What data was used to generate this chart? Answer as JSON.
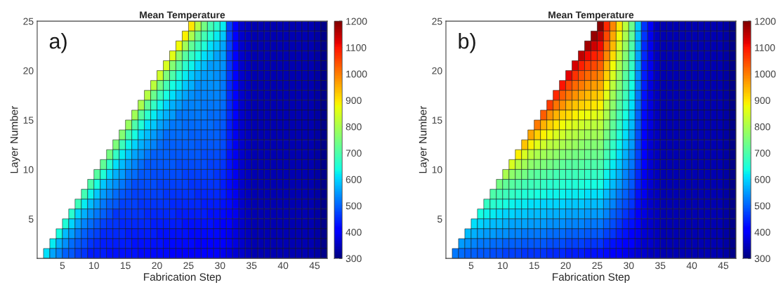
{
  "chart_data": [
    {
      "type": "heatmap",
      "title": "Mean Temperature",
      "xlabel": "Fabrication Step",
      "ylabel": "Layer Number",
      "annotations": [
        "a)"
      ],
      "xlim": [
        1,
        47
      ],
      "ylim": [
        1,
        25
      ],
      "xticks": [
        5,
        10,
        15,
        20,
        25,
        30,
        35,
        40,
        45
      ],
      "yticks": [
        5,
        10,
        15,
        20,
        25
      ],
      "clim": [
        300,
        1200
      ],
      "cticks": [
        300,
        400,
        500,
        600,
        700,
        800,
        900,
        1000,
        1100,
        1200
      ],
      "grid": false,
      "cells": [
        [
          null,
          null,
          null,
          null,
          null,
          null,
          null,
          null,
          null,
          null,
          null,
          null,
          null,
          null,
          null,
          null,
          null,
          null,
          null,
          null,
          null,
          null,
          null,
          null,
          900,
          810,
          740,
          690,
          660,
          620,
          470,
          400,
          360,
          350,
          340,
          340,
          340,
          340,
          340,
          340,
          340,
          340,
          340,
          340,
          330,
          310
        ],
        [
          null,
          null,
          null,
          null,
          null,
          null,
          null,
          null,
          null,
          null,
          null,
          null,
          null,
          null,
          null,
          null,
          null,
          null,
          null,
          null,
          null,
          null,
          null,
          890,
          800,
          730,
          690,
          650,
          620,
          590,
          470,
          400,
          360,
          350,
          340,
          340,
          340,
          340,
          340,
          340,
          340,
          340,
          340,
          340,
          330,
          310
        ],
        [
          null,
          null,
          null,
          null,
          null,
          null,
          null,
          null,
          null,
          null,
          null,
          null,
          null,
          null,
          null,
          null,
          null,
          null,
          null,
          null,
          null,
          null,
          880,
          790,
          720,
          680,
          650,
          610,
          590,
          560,
          470,
          400,
          360,
          350,
          340,
          340,
          340,
          340,
          340,
          340,
          340,
          340,
          340,
          340,
          330,
          310
        ],
        [
          null,
          null,
          null,
          null,
          null,
          null,
          null,
          null,
          null,
          null,
          null,
          null,
          null,
          null,
          null,
          null,
          null,
          null,
          null,
          null,
          null,
          860,
          770,
          710,
          670,
          640,
          610,
          590,
          560,
          550,
          460,
          400,
          360,
          350,
          340,
          340,
          340,
          340,
          340,
          340,
          340,
          340,
          340,
          340,
          330,
          310
        ],
        [
          null,
          null,
          null,
          null,
          null,
          null,
          null,
          null,
          null,
          null,
          null,
          null,
          null,
          null,
          null,
          null,
          null,
          null,
          null,
          null,
          850,
          760,
          710,
          660,
          630,
          600,
          580,
          550,
          550,
          540,
          460,
          400,
          360,
          350,
          340,
          340,
          340,
          340,
          340,
          340,
          340,
          340,
          340,
          340,
          330,
          310
        ],
        [
          null,
          null,
          null,
          null,
          null,
          null,
          null,
          null,
          null,
          null,
          null,
          null,
          null,
          null,
          null,
          null,
          null,
          null,
          null,
          840,
          750,
          700,
          650,
          620,
          590,
          570,
          550,
          550,
          540,
          530,
          460,
          400,
          360,
          350,
          340,
          340,
          340,
          340,
          340,
          340,
          340,
          340,
          340,
          340,
          330,
          310
        ],
        [
          null,
          null,
          null,
          null,
          null,
          null,
          null,
          null,
          null,
          null,
          null,
          null,
          null,
          null,
          null,
          null,
          null,
          null,
          820,
          740,
          690,
          640,
          620,
          590,
          570,
          540,
          540,
          540,
          540,
          520,
          450,
          400,
          360,
          350,
          340,
          340,
          340,
          340,
          340,
          340,
          340,
          340,
          340,
          340,
          330,
          310
        ],
        [
          null,
          null,
          null,
          null,
          null,
          null,
          null,
          null,
          null,
          null,
          null,
          null,
          null,
          null,
          null,
          null,
          null,
          810,
          730,
          680,
          640,
          610,
          580,
          560,
          540,
          530,
          530,
          530,
          530,
          520,
          450,
          400,
          360,
          350,
          340,
          340,
          340,
          340,
          340,
          340,
          340,
          340,
          340,
          340,
          330,
          310
        ],
        [
          null,
          null,
          null,
          null,
          null,
          null,
          null,
          null,
          null,
          null,
          null,
          null,
          null,
          null,
          null,
          null,
          800,
          720,
          670,
          630,
          600,
          570,
          550,
          530,
          530,
          530,
          520,
          520,
          520,
          510,
          450,
          400,
          360,
          350,
          340,
          340,
          340,
          340,
          340,
          340,
          340,
          340,
          340,
          340,
          330,
          310
        ],
        [
          null,
          null,
          null,
          null,
          null,
          null,
          null,
          null,
          null,
          null,
          null,
          null,
          null,
          null,
          null,
          790,
          710,
          660,
          620,
          590,
          570,
          550,
          520,
          520,
          520,
          520,
          520,
          510,
          510,
          500,
          450,
          400,
          360,
          350,
          340,
          340,
          340,
          340,
          340,
          340,
          340,
          340,
          340,
          340,
          330,
          310
        ],
        [
          null,
          null,
          null,
          null,
          null,
          null,
          null,
          null,
          null,
          null,
          null,
          null,
          null,
          null,
          780,
          700,
          650,
          610,
          590,
          560,
          540,
          520,
          520,
          510,
          510,
          510,
          510,
          510,
          500,
          490,
          440,
          390,
          360,
          350,
          340,
          340,
          340,
          340,
          340,
          340,
          340,
          340,
          340,
          340,
          330,
          310
        ],
        [
          null,
          null,
          null,
          null,
          null,
          null,
          null,
          null,
          null,
          null,
          null,
          null,
          null,
          760,
          690,
          640,
          600,
          580,
          550,
          530,
          510,
          510,
          510,
          510,
          500,
          500,
          500,
          500,
          500,
          480,
          440,
          390,
          360,
          350,
          340,
          340,
          340,
          340,
          340,
          340,
          340,
          340,
          340,
          340,
          330,
          310
        ],
        [
          null,
          null,
          null,
          null,
          null,
          null,
          null,
          null,
          null,
          null,
          null,
          null,
          750,
          680,
          630,
          600,
          570,
          550,
          530,
          510,
          500,
          500,
          500,
          500,
          500,
          490,
          490,
          490,
          490,
          480,
          440,
          390,
          360,
          350,
          340,
          340,
          340,
          340,
          340,
          340,
          340,
          340,
          340,
          340,
          330,
          310
        ],
        [
          null,
          null,
          null,
          null,
          null,
          null,
          null,
          null,
          null,
          null,
          null,
          740,
          670,
          620,
          590,
          560,
          540,
          520,
          500,
          500,
          500,
          490,
          490,
          490,
          490,
          490,
          480,
          480,
          480,
          470,
          430,
          390,
          360,
          350,
          340,
          340,
          340,
          340,
          340,
          340,
          340,
          340,
          340,
          340,
          330,
          310
        ],
        [
          null,
          null,
          null,
          null,
          null,
          null,
          null,
          null,
          null,
          null,
          720,
          660,
          610,
          580,
          550,
          530,
          510,
          490,
          490,
          490,
          490,
          490,
          480,
          480,
          480,
          480,
          480,
          470,
          470,
          460,
          430,
          390,
          360,
          350,
          340,
          340,
          340,
          340,
          340,
          340,
          340,
          340,
          340,
          340,
          330,
          310
        ],
        [
          null,
          null,
          null,
          null,
          null,
          null,
          null,
          null,
          null,
          710,
          650,
          600,
          570,
          550,
          520,
          510,
          490,
          490,
          480,
          480,
          480,
          480,
          480,
          470,
          470,
          470,
          470,
          470,
          460,
          450,
          430,
          390,
          360,
          350,
          340,
          340,
          340,
          340,
          340,
          340,
          340,
          340,
          340,
          340,
          330,
          310
        ],
        [
          null,
          null,
          null,
          null,
          null,
          null,
          null,
          null,
          700,
          640,
          590,
          560,
          540,
          520,
          500,
          480,
          480,
          480,
          480,
          470,
          470,
          470,
          470,
          470,
          460,
          460,
          460,
          460,
          460,
          440,
          420,
          390,
          360,
          350,
          340,
          340,
          340,
          340,
          340,
          340,
          340,
          340,
          340,
          340,
          330,
          310
        ],
        [
          null,
          null,
          null,
          null,
          null,
          null,
          null,
          690,
          630,
          590,
          550,
          530,
          510,
          490,
          480,
          470,
          470,
          470,
          470,
          470,
          460,
          460,
          460,
          460,
          460,
          450,
          450,
          450,
          450,
          440,
          420,
          390,
          360,
          350,
          340,
          340,
          340,
          340,
          340,
          340,
          340,
          340,
          340,
          340,
          330,
          310
        ],
        [
          null,
          null,
          null,
          null,
          null,
          null,
          680,
          620,
          580,
          550,
          520,
          500,
          490,
          470,
          470,
          470,
          460,
          460,
          460,
          460,
          460,
          450,
          450,
          450,
          450,
          450,
          440,
          440,
          440,
          430,
          420,
          390,
          360,
          350,
          340,
          340,
          340,
          340,
          340,
          340,
          340,
          340,
          340,
          340,
          330,
          310
        ],
        [
          null,
          null,
          null,
          null,
          null,
          660,
          600,
          570,
          540,
          520,
          500,
          480,
          460,
          460,
          460,
          460,
          460,
          450,
          450,
          450,
          450,
          450,
          440,
          440,
          440,
          440,
          440,
          430,
          430,
          420,
          410,
          390,
          360,
          350,
          340,
          340,
          340,
          340,
          340,
          340,
          340,
          340,
          340,
          340,
          330,
          310
        ],
        [
          null,
          null,
          null,
          null,
          650,
          600,
          560,
          530,
          510,
          490,
          470,
          460,
          460,
          450,
          450,
          450,
          450,
          450,
          440,
          440,
          440,
          440,
          440,
          430,
          430,
          430,
          430,
          430,
          420,
          410,
          400,
          380,
          360,
          350,
          340,
          340,
          340,
          340,
          340,
          340,
          340,
          340,
          340,
          340,
          330,
          310
        ],
        [
          null,
          null,
          null,
          640,
          580,
          550,
          520,
          500,
          480,
          470,
          450,
          450,
          450,
          450,
          440,
          440,
          440,
          440,
          440,
          430,
          430,
          430,
          430,
          430,
          420,
          420,
          420,
          420,
          420,
          400,
          390,
          380,
          360,
          350,
          340,
          340,
          340,
          340,
          340,
          340,
          340,
          340,
          340,
          340,
          330,
          310
        ],
        [
          null,
          null,
          620,
          570,
          540,
          510,
          490,
          480,
          460,
          450,
          440,
          440,
          440,
          440,
          440,
          430,
          430,
          430,
          430,
          430,
          420,
          420,
          420,
          420,
          420,
          410,
          410,
          410,
          410,
          400,
          390,
          380,
          360,
          350,
          340,
          340,
          340,
          340,
          340,
          340,
          340,
          340,
          340,
          340,
          330,
          310
        ],
        [
          null,
          610,
          560,
          530,
          500,
          490,
          470,
          460,
          440,
          440,
          440,
          430,
          430,
          430,
          430,
          430,
          420,
          420,
          420,
          420,
          420,
          410,
          410,
          410,
          410,
          410,
          400,
          400,
          400,
          390,
          380,
          370,
          360,
          350,
          340,
          340,
          340,
          340,
          340,
          340,
          340,
          340,
          340,
          340,
          330,
          310
        ]
      ]
    },
    {
      "type": "heatmap",
      "title": "Mean Temperature",
      "xlabel": "Fabrication Step",
      "ylabel": "Layer Number",
      "annotations": [
        "b)"
      ],
      "xlim": [
        1,
        47
      ],
      "ylim": [
        1,
        25
      ],
      "xticks": [
        5,
        10,
        15,
        20,
        25,
        30,
        35,
        40,
        45
      ],
      "yticks": [
        5,
        10,
        15,
        20,
        25
      ],
      "clim": [
        300,
        1200
      ],
      "cticks": [
        300,
        400,
        500,
        600,
        700,
        800,
        900,
        1000,
        1100,
        1200
      ],
      "grid": false,
      "cells": [
        [
          null,
          null,
          null,
          null,
          null,
          null,
          null,
          null,
          null,
          null,
          null,
          null,
          null,
          null,
          null,
          null,
          null,
          null,
          null,
          null,
          null,
          null,
          null,
          null,
          1190,
          1080,
          990,
          900,
          820,
          730,
          590,
          460,
          400,
          350,
          340,
          340,
          340,
          340,
          340,
          340,
          340,
          340,
          340,
          340,
          330,
          310
        ],
        [
          null,
          null,
          null,
          null,
          null,
          null,
          null,
          null,
          null,
          null,
          null,
          null,
          null,
          null,
          null,
          null,
          null,
          null,
          null,
          null,
          null,
          null,
          null,
          1180,
          1150,
          1050,
          960,
          880,
          800,
          720,
          580,
          460,
          390,
          350,
          340,
          340,
          340,
          340,
          340,
          340,
          340,
          340,
          340,
          340,
          330,
          310
        ],
        [
          null,
          null,
          null,
          null,
          null,
          null,
          null,
          null,
          null,
          null,
          null,
          null,
          null,
          null,
          null,
          null,
          null,
          null,
          null,
          null,
          null,
          null,
          1170,
          1140,
          1110,
          1020,
          940,
          850,
          780,
          700,
          570,
          450,
          390,
          350,
          340,
          340,
          340,
          340,
          340,
          340,
          340,
          340,
          340,
          340,
          330,
          310
        ],
        [
          null,
          null,
          null,
          null,
          null,
          null,
          null,
          null,
          null,
          null,
          null,
          null,
          null,
          null,
          null,
          null,
          null,
          null,
          null,
          null,
          null,
          1150,
          1110,
          1090,
          1070,
          990,
          910,
          830,
          760,
          680,
          560,
          450,
          390,
          350,
          340,
          340,
          340,
          340,
          340,
          340,
          340,
          340,
          340,
          340,
          330,
          310
        ],
        [
          null,
          null,
          null,
          null,
          null,
          null,
          null,
          null,
          null,
          null,
          null,
          null,
          null,
          null,
          null,
          null,
          null,
          null,
          null,
          null,
          1130,
          1090,
          1060,
          1050,
          1030,
          950,
          880,
          800,
          740,
          670,
          550,
          440,
          390,
          350,
          340,
          340,
          340,
          340,
          340,
          340,
          340,
          340,
          340,
          340,
          330,
          310
        ],
        [
          null,
          null,
          null,
          null,
          null,
          null,
          null,
          null,
          null,
          null,
          null,
          null,
          null,
          null,
          null,
          null,
          null,
          null,
          null,
          1120,
          1070,
          1040,
          1020,
          1010,
          990,
          920,
          850,
          780,
          710,
          650,
          540,
          440,
          390,
          350,
          340,
          340,
          340,
          340,
          340,
          340,
          340,
          340,
          340,
          340,
          330,
          310
        ],
        [
          null,
          null,
          null,
          null,
          null,
          null,
          null,
          null,
          null,
          null,
          null,
          null,
          null,
          null,
          null,
          null,
          null,
          null,
          1100,
          1050,
          1020,
          1000,
          980,
          970,
          960,
          890,
          820,
          760,
          700,
          640,
          530,
          440,
          380,
          350,
          340,
          340,
          340,
          340,
          340,
          340,
          340,
          340,
          340,
          340,
          330,
          310
        ],
        [
          null,
          null,
          null,
          null,
          null,
          null,
          null,
          null,
          null,
          null,
          null,
          null,
          null,
          null,
          null,
          null,
          null,
          1080,
          1030,
          1000,
          980,
          960,
          940,
          930,
          920,
          860,
          790,
          730,
          680,
          620,
          520,
          430,
          380,
          350,
          340,
          340,
          340,
          340,
          340,
          340,
          340,
          340,
          340,
          340,
          330,
          310
        ],
        [
          null,
          null,
          null,
          null,
          null,
          null,
          null,
          null,
          null,
          null,
          null,
          null,
          null,
          null,
          null,
          null,
          1060,
          1010,
          980,
          950,
          930,
          920,
          910,
          900,
          890,
          820,
          770,
          710,
          660,
          610,
          510,
          430,
          380,
          350,
          340,
          340,
          340,
          340,
          340,
          340,
          340,
          340,
          340,
          340,
          330,
          310
        ],
        [
          null,
          null,
          null,
          null,
          null,
          null,
          null,
          null,
          null,
          null,
          null,
          null,
          null,
          null,
          null,
          1030,
          980,
          950,
          920,
          910,
          890,
          880,
          870,
          860,
          850,
          800,
          740,
          690,
          640,
          590,
          500,
          420,
          380,
          350,
          340,
          340,
          340,
          340,
          340,
          340,
          340,
          340,
          340,
          340,
          330,
          310
        ],
        [
          null,
          null,
          null,
          null,
          null,
          null,
          null,
          null,
          null,
          null,
          null,
          null,
          null,
          null,
          1000,
          950,
          920,
          900,
          880,
          860,
          850,
          840,
          830,
          820,
          820,
          770,
          720,
          670,
          620,
          580,
          490,
          420,
          380,
          350,
          340,
          340,
          340,
          340,
          340,
          340,
          340,
          340,
          340,
          340,
          330,
          310
        ],
        [
          null,
          null,
          null,
          null,
          null,
          null,
          null,
          null,
          null,
          null,
          null,
          null,
          null,
          960,
          920,
          890,
          870,
          850,
          840,
          820,
          810,
          800,
          790,
          790,
          790,
          740,
          700,
          650,
          610,
          560,
          480,
          410,
          370,
          350,
          340,
          340,
          340,
          340,
          340,
          340,
          340,
          340,
          340,
          340,
          330,
          310
        ],
        [
          null,
          null,
          null,
          null,
          null,
          null,
          null,
          null,
          null,
          null,
          null,
          null,
          930,
          890,
          860,
          840,
          820,
          810,
          800,
          790,
          780,
          770,
          760,
          760,
          760,
          710,
          670,
          630,
          590,
          550,
          470,
          410,
          370,
          350,
          340,
          340,
          340,
          340,
          340,
          340,
          340,
          340,
          340,
          340,
          330,
          310
        ],
        [
          null,
          null,
          null,
          null,
          null,
          null,
          null,
          null,
          null,
          null,
          null,
          890,
          850,
          820,
          800,
          790,
          780,
          770,
          760,
          750,
          740,
          740,
          730,
          730,
          730,
          690,
          650,
          610,
          570,
          530,
          470,
          400,
          370,
          350,
          340,
          340,
          340,
          340,
          340,
          340,
          340,
          340,
          340,
          340,
          330,
          310
        ],
        [
          null,
          null,
          null,
          null,
          null,
          null,
          null,
          null,
          null,
          null,
          850,
          810,
          790,
          770,
          760,
          750,
          740,
          730,
          720,
          710,
          710,
          710,
          700,
          700,
          700,
          660,
          620,
          590,
          550,
          520,
          460,
          400,
          370,
          350,
          340,
          340,
          340,
          340,
          340,
          340,
          340,
          340,
          340,
          340,
          330,
          310
        ],
        [
          null,
          null,
          null,
          null,
          null,
          null,
          null,
          null,
          null,
          800,
          770,
          750,
          740,
          720,
          710,
          710,
          700,
          690,
          690,
          680,
          680,
          680,
          670,
          670,
          670,
          630,
          600,
          570,
          530,
          500,
          450,
          390,
          370,
          350,
          340,
          340,
          340,
          340,
          340,
          340,
          340,
          340,
          340,
          340,
          330,
          310
        ],
        [
          null,
          null,
          null,
          null,
          null,
          null,
          null,
          null,
          740,
          720,
          710,
          700,
          690,
          680,
          680,
          670,
          660,
          660,
          660,
          650,
          650,
          650,
          640,
          640,
          640,
          610,
          580,
          550,
          520,
          490,
          440,
          390,
          370,
          350,
          340,
          340,
          340,
          340,
          340,
          340,
          340,
          340,
          340,
          340,
          330,
          310
        ],
        [
          null,
          null,
          null,
          null,
          null,
          null,
          null,
          700,
          690,
          680,
          670,
          660,
          650,
          650,
          640,
          640,
          630,
          630,
          630,
          620,
          620,
          620,
          610,
          610,
          610,
          580,
          550,
          520,
          500,
          470,
          430,
          390,
          360,
          350,
          340,
          340,
          340,
          340,
          340,
          340,
          340,
          340,
          340,
          340,
          330,
          310
        ],
        [
          null,
          null,
          null,
          null,
          null,
          null,
          670,
          660,
          650,
          640,
          630,
          620,
          620,
          610,
          610,
          600,
          600,
          600,
          600,
          590,
          590,
          590,
          580,
          580,
          580,
          550,
          530,
          500,
          480,
          460,
          420,
          380,
          360,
          350,
          340,
          340,
          340,
          340,
          340,
          340,
          340,
          340,
          340,
          340,
          330,
          310
        ],
        [
          null,
          null,
          null,
          null,
          null,
          640,
          630,
          620,
          610,
          600,
          600,
          590,
          590,
          580,
          580,
          580,
          570,
          570,
          570,
          560,
          560,
          560,
          550,
          550,
          550,
          530,
          500,
          480,
          460,
          440,
          410,
          380,
          360,
          350,
          340,
          340,
          340,
          340,
          340,
          340,
          340,
          340,
          340,
          340,
          330,
          310
        ],
        [
          null,
          null,
          null,
          null,
          610,
          600,
          590,
          580,
          580,
          570,
          560,
          560,
          560,
          550,
          550,
          550,
          540,
          540,
          540,
          530,
          530,
          530,
          520,
          520,
          520,
          500,
          480,
          460,
          440,
          430,
          400,
          370,
          360,
          350,
          340,
          340,
          340,
          340,
          340,
          340,
          340,
          340,
          340,
          340,
          330,
          310
        ],
        [
          null,
          null,
          null,
          580,
          570,
          560,
          550,
          550,
          540,
          540,
          530,
          530,
          520,
          520,
          520,
          520,
          510,
          510,
          510,
          500,
          500,
          500,
          490,
          490,
          490,
          470,
          460,
          440,
          430,
          410,
          390,
          370,
          360,
          350,
          340,
          340,
          340,
          340,
          340,
          340,
          340,
          340,
          340,
          340,
          330,
          310
        ],
        [
          null,
          null,
          550,
          540,
          530,
          520,
          520,
          510,
          510,
          500,
          500,
          500,
          490,
          490,
          490,
          490,
          480,
          480,
          480,
          470,
          470,
          470,
          460,
          460,
          460,
          440,
          430,
          420,
          410,
          400,
          380,
          360,
          360,
          350,
          340,
          340,
          340,
          340,
          340,
          340,
          340,
          340,
          340,
          340,
          330,
          310
        ],
        [
          null,
          520,
          510,
          500,
          500,
          490,
          490,
          480,
          480,
          470,
          470,
          470,
          460,
          460,
          460,
          460,
          450,
          450,
          450,
          440,
          440,
          440,
          430,
          430,
          430,
          420,
          410,
          400,
          390,
          380,
          370,
          360,
          350,
          350,
          340,
          340,
          340,
          340,
          340,
          340,
          340,
          340,
          340,
          340,
          330,
          310
        ]
      ]
    }
  ]
}
